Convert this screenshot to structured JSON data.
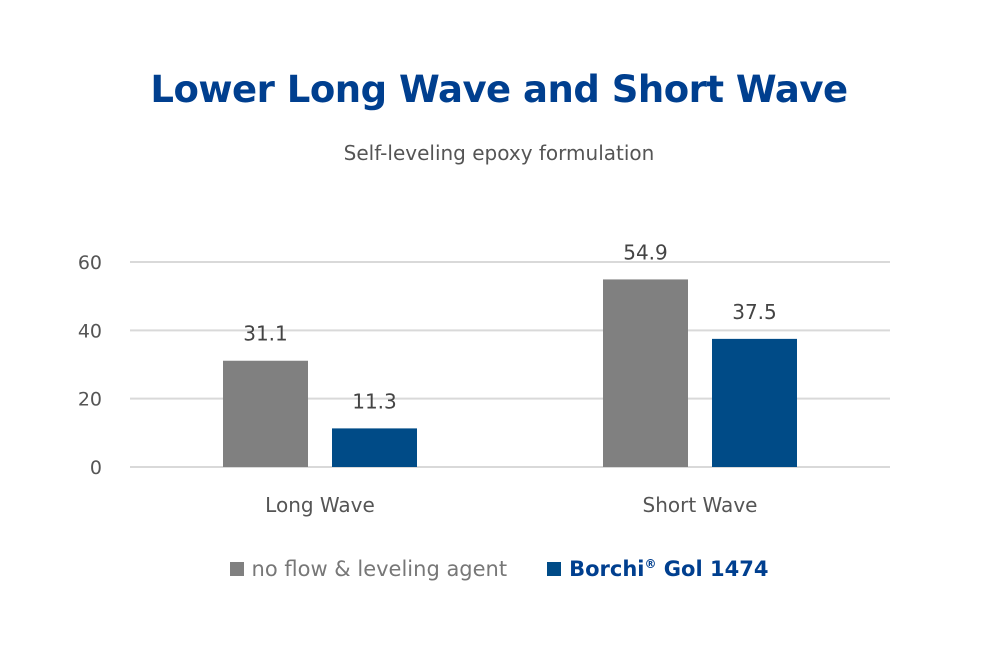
{
  "chart_data": {
    "type": "bar",
    "title": "Lower Long Wave and Short Wave",
    "subtitle": "Self-leveling epoxy formulation",
    "categories": [
      "Long Wave",
      "Short Wave"
    ],
    "series": [
      {
        "name": "no flow & leveling agent",
        "values": [
          31.1,
          54.9
        ],
        "color": "#808080"
      },
      {
        "name": "Borchi® Gol 1474",
        "name_base": "Borchi",
        "name_sup": "®",
        "name_rest": " Gol 1474",
        "values": [
          11.3,
          37.5
        ],
        "color": "#004b87"
      }
    ],
    "ylim": [
      0,
      60
    ],
    "yticks": [
      0,
      20,
      40,
      60
    ],
    "grid": true,
    "legend": "bottom",
    "xlabel": "",
    "ylabel": ""
  }
}
